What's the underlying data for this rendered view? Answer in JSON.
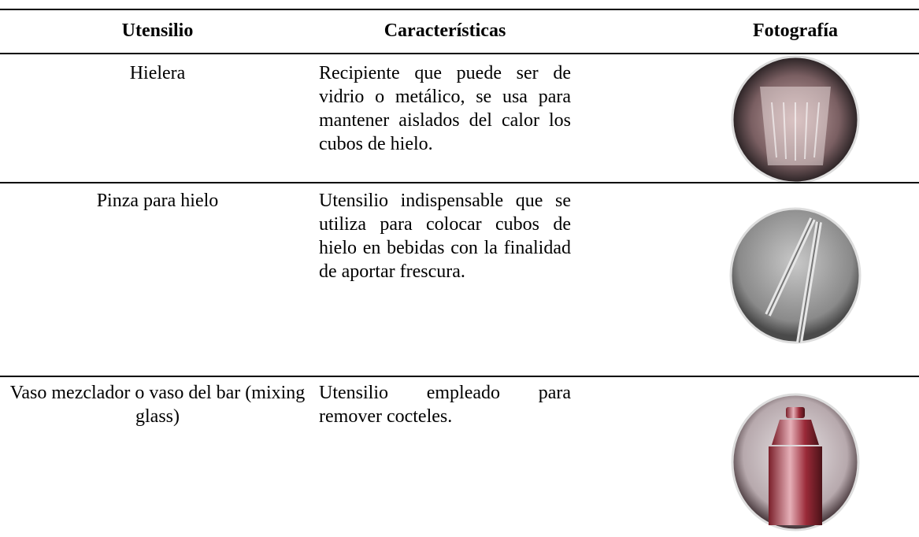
{
  "table": {
    "header": [
      "Utensilio",
      "Características",
      "Fotografía"
    ],
    "rows": [
      [
        "Hielera",
        "Recipiente que puede ser de vidrio o metálico, se usa para mantener aislados del calor los cubos de hielo."
      ],
      [
        "Pinza para hielo",
        "Utensilio indispensable que se utiliza para colocar cubos de hielo en bebidas con la finalidad de aportar frescura."
      ],
      [
        "Vaso mezclador o vaso del bar (mixing glass)",
        "Utensilio empleado para remover cocteles."
      ]
    ]
  }
}
